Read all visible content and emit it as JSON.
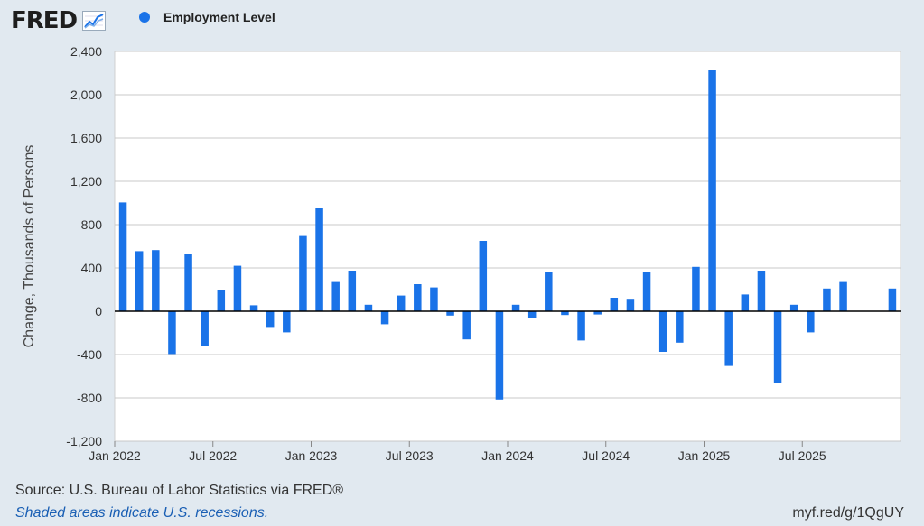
{
  "header": {
    "logo_text": "FRED",
    "logo_icon": "line-graph-icon"
  },
  "legend": {
    "label": "Employment Level",
    "color": "#1a73e8"
  },
  "footer": {
    "source": "Source: U.S. Bureau of Labor Statistics via FRED®",
    "note": "Shaded areas indicate U.S. recessions.",
    "url": "myf.red/g/1QgUY"
  },
  "colors": {
    "bar": "#1a73e8",
    "background": "#e1e9f0",
    "plot_bg": "#ffffff",
    "grid": "#c8c8c8",
    "zero_line": "#000000"
  },
  "chart_data": {
    "type": "bar",
    "ylabel": "Change, Thousands of Persons",
    "ylim": [
      -1200,
      2400
    ],
    "y_ticks": [
      -1200,
      -800,
      -400,
      0,
      400,
      800,
      1200,
      1600,
      2000,
      2400
    ],
    "y_tick_labels": [
      "-1,200",
      "-800",
      "-400",
      "0",
      "400",
      "800",
      "1,200",
      "1,600",
      "2,000",
      "2,400"
    ],
    "x_tick_labels": [
      "Jan 2022",
      "Jul 2022",
      "Jan 2023",
      "Jul 2023",
      "Jan 2024",
      "Jul 2024",
      "Jan 2025",
      "Jul 2025"
    ],
    "x_tick_months": [
      "2022-01",
      "2022-07",
      "2023-01",
      "2023-07",
      "2024-01",
      "2024-07",
      "2025-01",
      "2025-07"
    ],
    "x_start": "2022-01",
    "x_end": "2025-12",
    "grid": true,
    "legend_position": "top-left",
    "categories": [
      "2022-01",
      "2022-02",
      "2022-03",
      "2022-04",
      "2022-05",
      "2022-06",
      "2022-07",
      "2022-08",
      "2022-09",
      "2022-10",
      "2022-11",
      "2022-12",
      "2023-01",
      "2023-02",
      "2023-03",
      "2023-04",
      "2023-05",
      "2023-06",
      "2023-07",
      "2023-08",
      "2023-09",
      "2023-10",
      "2023-11",
      "2023-12",
      "2024-01",
      "2024-02",
      "2024-03",
      "2024-04",
      "2024-05",
      "2024-06",
      "2024-07",
      "2024-08",
      "2024-09",
      "2024-10",
      "2024-11",
      "2024-12",
      "2025-01",
      "2025-02",
      "2025-03",
      "2025-04",
      "2025-05",
      "2025-06",
      "2025-07",
      "2025-08",
      "2025-09",
      "2025-10",
      "2025-11",
      "2025-12"
    ],
    "values": [
      1005,
      555,
      565,
      -395,
      530,
      -320,
      200,
      420,
      55,
      -145,
      -195,
      695,
      950,
      270,
      375,
      60,
      -120,
      145,
      250,
      220,
      -40,
      -260,
      650,
      -815,
      60,
      -60,
      365,
      -35,
      -270,
      -30,
      125,
      115,
      365,
      -375,
      -290,
      410,
      2225,
      -505,
      155,
      375,
      -660,
      60,
      -195,
      210,
      270,
      null,
      null,
      210
    ]
  }
}
